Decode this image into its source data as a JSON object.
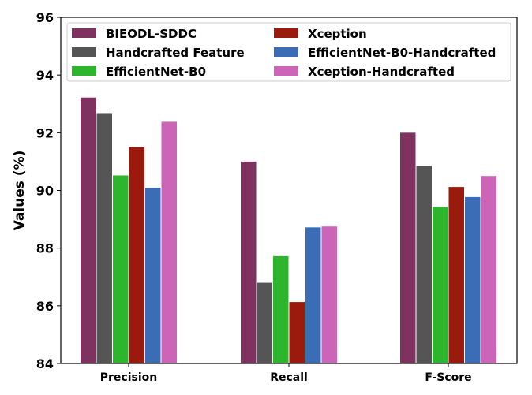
{
  "chart_data": {
    "type": "bar",
    "title": "",
    "xlabel": "",
    "ylabel": "Values (%)",
    "ylim": [
      84,
      96
    ],
    "yticks": [
      84,
      86,
      88,
      90,
      92,
      94,
      96
    ],
    "grid": false,
    "legend_position": "top",
    "categories": [
      "Precision",
      "Recall",
      "F-Score"
    ],
    "series": [
      {
        "name": "BIEODL-SDDC",
        "color": "#7f3260",
        "values": [
          93.22,
          91.0,
          92.0
        ]
      },
      {
        "name": "Handcrafted Feature",
        "color": "#555555",
        "values": [
          92.68,
          86.8,
          90.85
        ]
      },
      {
        "name": "EfficientNet-B0",
        "color": "#2db52d",
        "values": [
          90.52,
          87.72,
          89.43
        ]
      },
      {
        "name": "Xception",
        "color": "#9a1a0d",
        "values": [
          91.5,
          86.13,
          90.12
        ]
      },
      {
        "name": "EfficientNet-B0-Handcrafted",
        "color": "#3a6db5",
        "values": [
          90.09,
          88.72,
          89.77
        ]
      },
      {
        "name": "Xception-Handcrafted",
        "color": "#cc64b8",
        "values": [
          92.38,
          88.75,
          90.5
        ]
      }
    ]
  }
}
